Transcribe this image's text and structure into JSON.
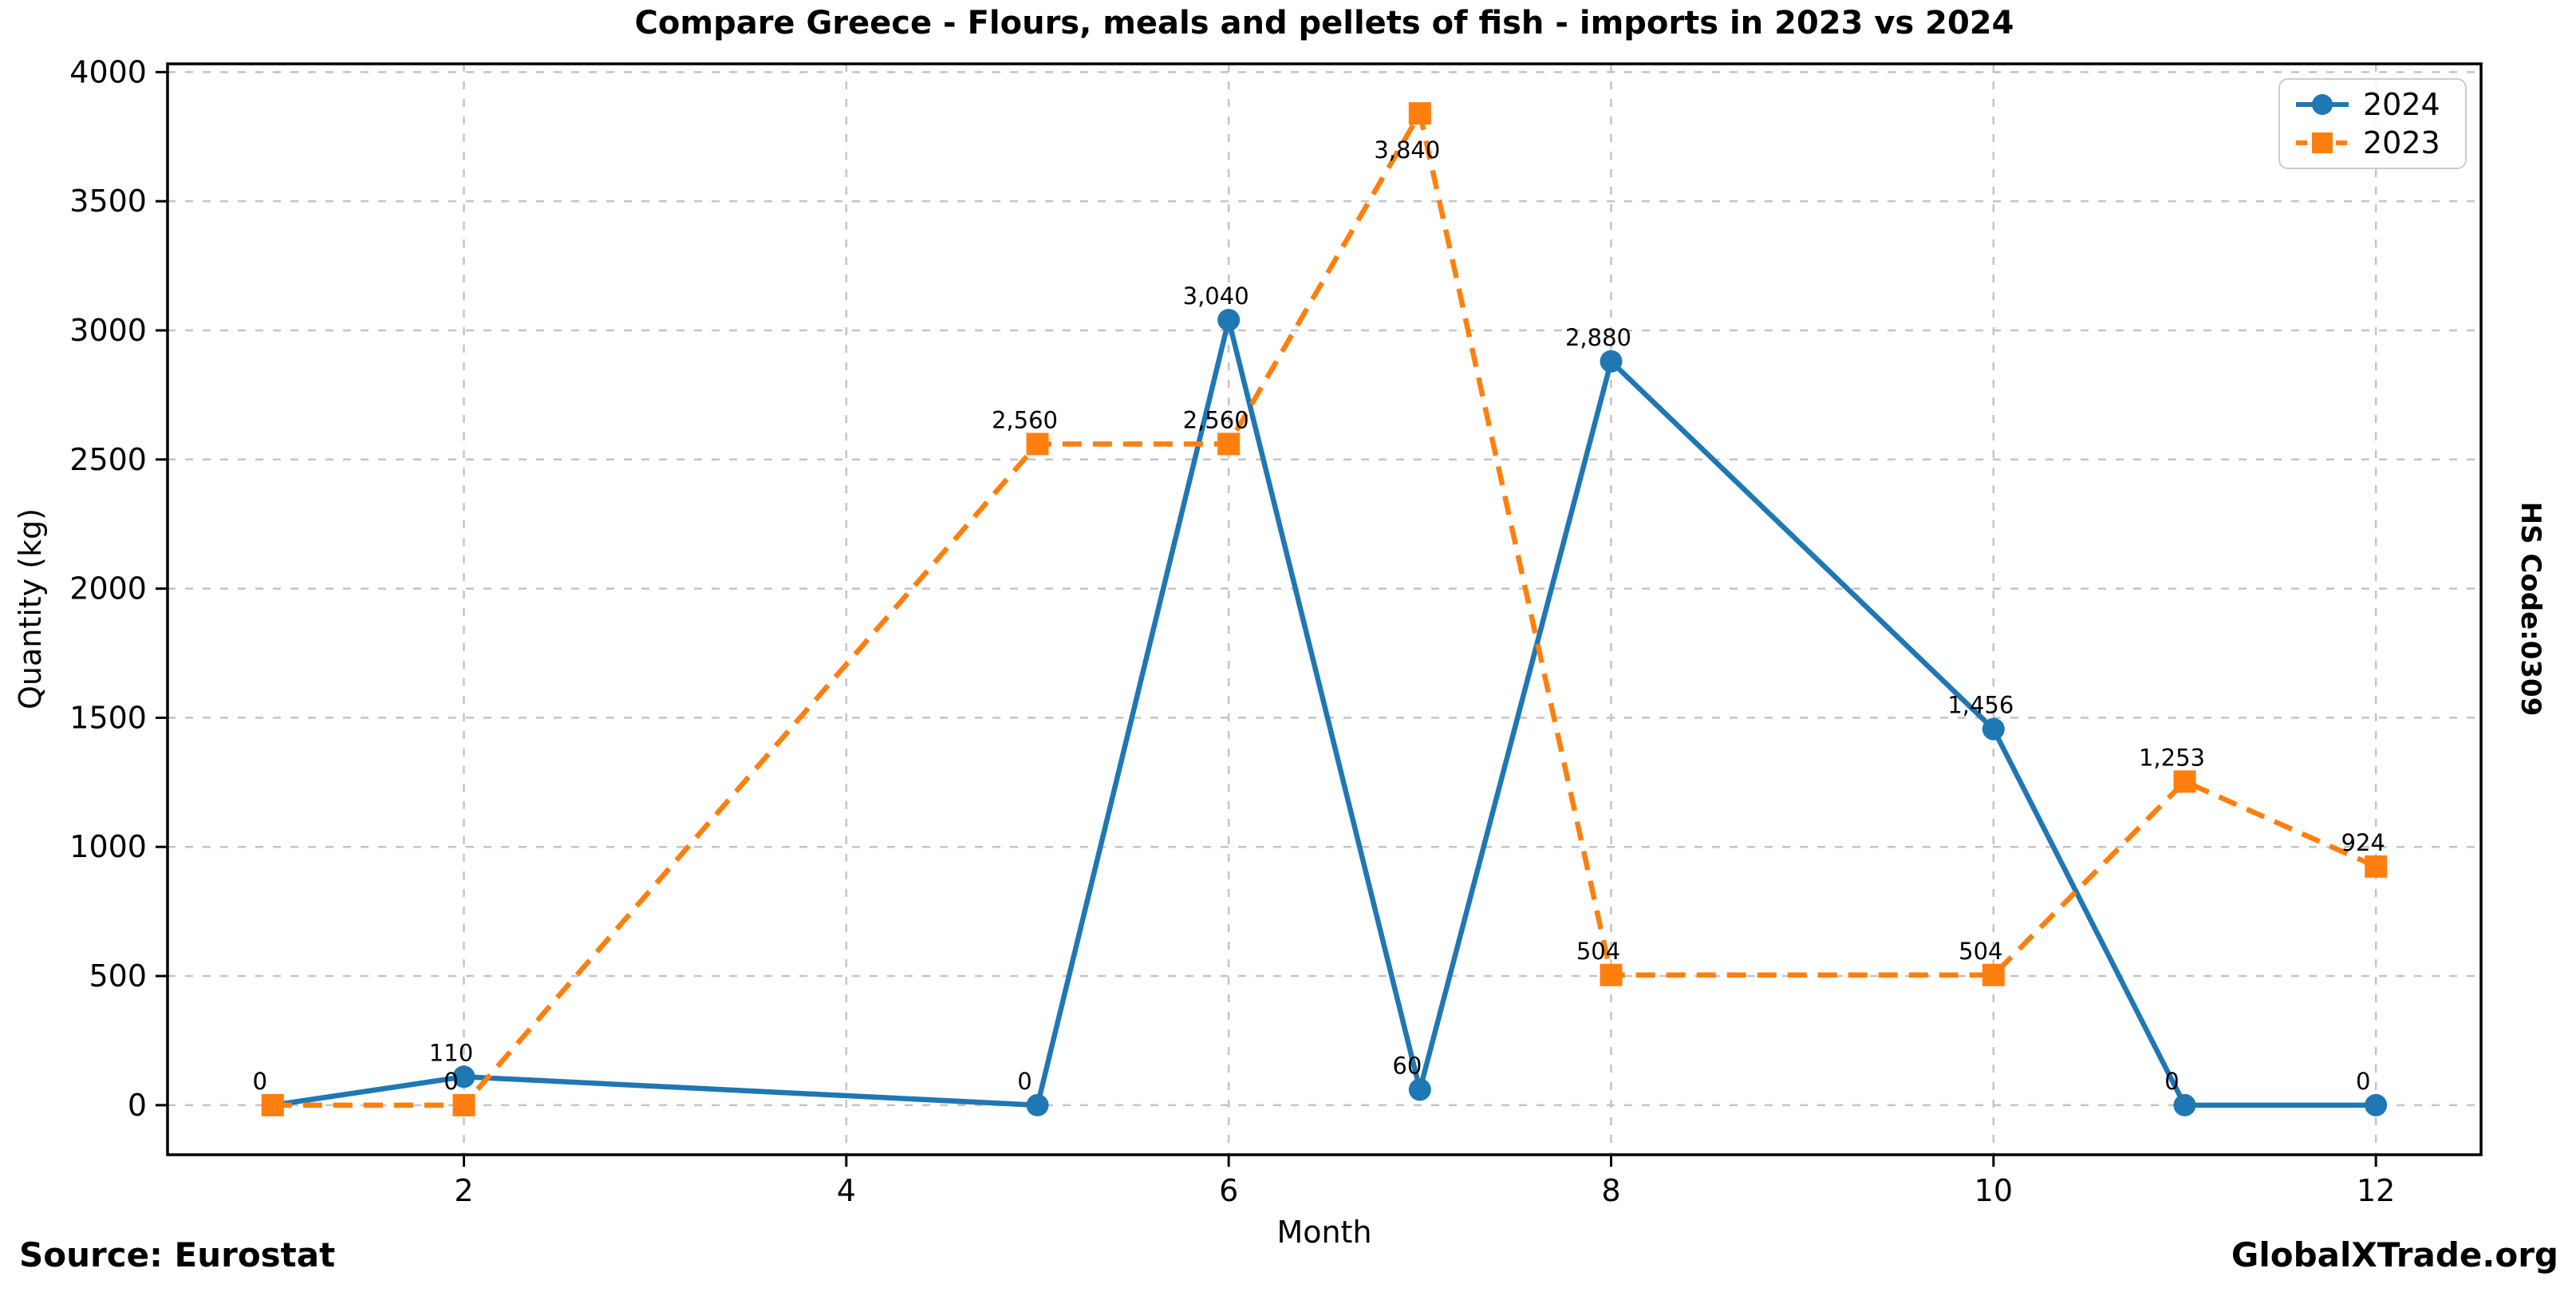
{
  "chart_data": {
    "type": "line",
    "title": "Compare Greece - Flours, meals and pellets of fish - imports in 2023 vs 2024",
    "xlabel": "Month",
    "ylabel": "Quantity (kg)",
    "x": [
      1,
      2,
      5,
      6,
      7,
      8,
      10,
      11,
      12
    ],
    "series": [
      {
        "name": "2024",
        "color": "#1f77b4",
        "line_style": "solid",
        "marker": "circle",
        "values": [
          0,
          110,
          0,
          3040,
          60,
          2880,
          1456,
          0,
          0
        ],
        "labels": [
          "0",
          "110",
          "0",
          "3,040",
          "60",
          "2,880",
          "1,456",
          "0",
          "0"
        ]
      },
      {
        "name": "2023",
        "color": "#ff7f0e",
        "line_style": "dashed",
        "marker": "square",
        "values": [
          0,
          0,
          2560,
          2560,
          3840,
          504,
          504,
          1253,
          924
        ],
        "labels": [
          "0",
          "0",
          "2,560",
          "2,560",
          "3,840",
          "504",
          "504",
          "1,253",
          "924"
        ]
      }
    ],
    "x_ticks": [
      "2",
      "4",
      "6",
      "8",
      "10",
      "12"
    ],
    "y_ticks": [
      "0",
      "500",
      "1000",
      "1500",
      "2000",
      "2500",
      "3000",
      "3500",
      "4000"
    ],
    "xlim": [
      0.45,
      12.55
    ],
    "ylim": [
      -192,
      4032
    ],
    "grid": true,
    "legend_position": "upper right"
  },
  "legend": {
    "items": [
      {
        "label": "2024"
      },
      {
        "label": "2023"
      }
    ]
  },
  "side_label": "HS Code:0309",
  "footer": {
    "source": "Source: Eurostat",
    "brand": "GlobalXTrade.org"
  },
  "colors": {
    "series_2024": "#1f77b4",
    "series_2023": "#ff7f0e",
    "grid": "#c4c4c4",
    "spine": "#000000",
    "background": "#ffffff"
  }
}
